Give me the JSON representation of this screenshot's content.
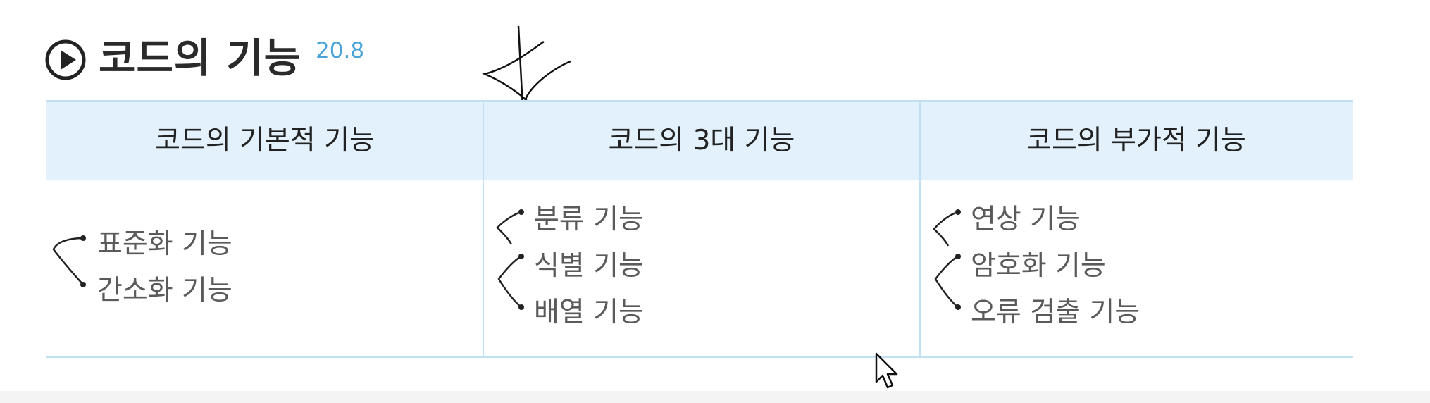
{
  "heading": {
    "title": "코드의 기능",
    "ref": "20.8",
    "icon": "play-circle-icon"
  },
  "table": {
    "columns": [
      {
        "header": "코드의 기본적 기능",
        "items": [
          "표준화 기능",
          "간소화 기능"
        ]
      },
      {
        "header": "코드의 3대 기능",
        "items": [
          "분류 기능",
          "식별 기능",
          "배열 기능"
        ]
      },
      {
        "header": "코드의 부가적 기능",
        "items": [
          "연상 기능",
          "암호화 기능",
          "오류 검출 기능"
        ]
      }
    ]
  },
  "colors": {
    "header_bg": "#e2f1fb",
    "border": "#c2e0f3",
    "ref_blue": "#4aa3d8",
    "body_text": "#5a5a5a"
  }
}
